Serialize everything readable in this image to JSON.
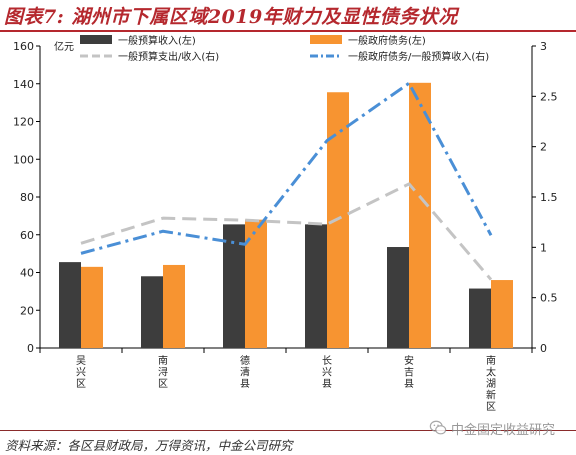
{
  "title": "图表7: 湖州市下属区域2019年财力及显性债务状况",
  "source": "资料来源：各区县财政局，万得资讯，中金公司研究",
  "watermark": {
    "text": "中金固定收益研究",
    "icon": "wechat-icon"
  },
  "colors": {
    "title": "#b5282e",
    "series_dark": "#3d3d3d",
    "series_orange": "#f79431",
    "series_grey_line": "#c4c4c4",
    "series_blue_line": "#4a8fd6"
  },
  "chart_data": {
    "type": "bar",
    "title": "",
    "categories": [
      "吴兴区",
      "南浔区",
      "德清县",
      "长兴县",
      "安吉县",
      "南太湖新区"
    ],
    "y_left": {
      "unit": "亿元",
      "range": [
        0,
        160
      ],
      "ticks": [
        0,
        20,
        40,
        60,
        80,
        100,
        120,
        140,
        160
      ]
    },
    "y_right": {
      "range": [
        0,
        3
      ],
      "ticks": [
        "0",
        "0.5",
        "1",
        "1.5",
        "2",
        "2.5",
        "3"
      ]
    },
    "grid": false,
    "legend_position": "top",
    "series": [
      {
        "name": "一般预算收入(左)",
        "type": "bar",
        "axis": "left",
        "color": "#3d3d3d",
        "values": [
          45.5,
          38,
          65.5,
          65.5,
          53.5,
          31.5
        ]
      },
      {
        "name": "一般政府债务(左)",
        "type": "bar",
        "axis": "left",
        "color": "#f79431",
        "values": [
          43,
          44,
          68,
          135.5,
          140.5,
          36
        ]
      },
      {
        "name": "一般预算支出/收入(右)",
        "type": "line",
        "dash": "long-dash",
        "axis": "right",
        "color": "#c4c4c4",
        "values": [
          1.04,
          1.29,
          1.27,
          1.23,
          1.63,
          0.68
        ]
      },
      {
        "name": "一般政府债务/一般预算收入(右)",
        "type": "line",
        "dash": "dash-dot",
        "axis": "right",
        "color": "#4a8fd6",
        "values": [
          0.94,
          1.16,
          1.03,
          2.06,
          2.63,
          1.12
        ]
      }
    ]
  }
}
